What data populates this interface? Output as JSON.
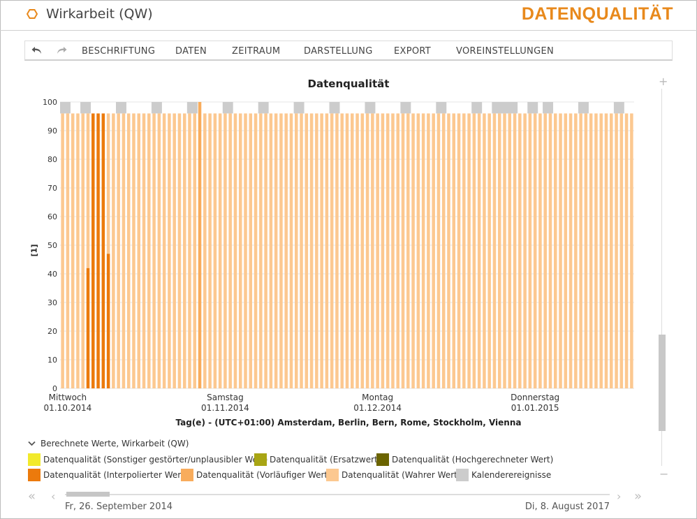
{
  "header": {
    "app_title": "Wirkarbeit (QW)",
    "module_title": "DATENQUALITÄT",
    "logo_icon": "hexagon-icon",
    "accent_color": "#e8891c"
  },
  "toolbar": {
    "undo_icon": "undo-arrow-icon",
    "redo_icon": "redo-arrow-icon",
    "menu": [
      "BESCHRIFTUNG",
      "DATEN",
      "ZEITRAUM",
      "DARSTELLUNG",
      "EXPORT",
      "VOREINSTELLUNGEN"
    ]
  },
  "chart_data": {
    "type": "bar",
    "title": "Datenqualität",
    "ylabel": "[1]",
    "xlabel": "Tag(e) - (UTC+01:00) Amsterdam, Berlin, Bern, Rome, Stockholm, Vienna",
    "ylim": [
      0,
      100
    ],
    "yticks": [
      0,
      10,
      20,
      30,
      40,
      50,
      60,
      70,
      80,
      90,
      100
    ],
    "x_start": "2014-09-30",
    "day_count": 113,
    "xticks": [
      {
        "line1": "Mittwoch",
        "line2": "01.10.2014",
        "date": "2014-10-01"
      },
      {
        "line1": "Samstag",
        "line2": "01.11.2014",
        "date": "2014-11-01"
      },
      {
        "line1": "Montag",
        "line2": "01.12.2014",
        "date": "2014-12-01"
      },
      {
        "line1": "Donnerstag",
        "line2": "01.01.2015",
        "date": "2015-01-01"
      }
    ],
    "grid": true,
    "legend_position": "bottom",
    "series": [
      {
        "name": "Datenqualität (Sonstiger gestörter/unplausibler Wert)",
        "color": "#f2ea2b",
        "points": []
      },
      {
        "name": "Datenqualität (Ersatzwert)",
        "color": "#a8a514",
        "points": []
      },
      {
        "name": "Datenqualität (Hochgerechneter Wert)",
        "color": "#6b6400",
        "points": []
      },
      {
        "name": "Datenqualität (Interpolierter Wert)",
        "color": "#ec7a0c",
        "points": [
          {
            "date": "2014-10-05",
            "value": 42
          },
          {
            "date": "2014-10-06",
            "value": 96
          },
          {
            "date": "2014-10-07",
            "value": 96
          },
          {
            "date": "2014-10-08",
            "value": 96
          },
          {
            "date": "2014-10-09",
            "value": 47
          }
        ]
      },
      {
        "name": "Datenqualität (Vorläufiger Wert)",
        "color": "#f8ac5c",
        "points": [
          {
            "date": "2014-10-27",
            "value": 100
          }
        ]
      },
      {
        "name": "Datenqualität (Wahrer Wert)",
        "color": "#fcc890",
        "default_value": 96
      },
      {
        "name": "Kalenderereignisse",
        "color": "#cccccc",
        "height": 4,
        "dates": [
          "2014-09-30",
          "2014-10-01",
          "2014-10-04",
          "2014-10-05",
          "2014-10-11",
          "2014-10-12",
          "2014-10-18",
          "2014-10-19",
          "2014-10-25",
          "2014-10-26",
          "2014-11-01",
          "2014-11-02",
          "2014-11-08",
          "2014-11-09",
          "2014-11-15",
          "2014-11-16",
          "2014-11-22",
          "2014-11-23",
          "2014-11-29",
          "2014-11-30",
          "2014-12-06",
          "2014-12-07",
          "2014-12-13",
          "2014-12-14",
          "2014-12-20",
          "2014-12-21",
          "2014-12-24",
          "2014-12-25",
          "2014-12-26",
          "2014-12-27",
          "2014-12-28",
          "2014-12-31",
          "2015-01-01",
          "2015-01-03",
          "2015-01-04",
          "2015-01-10",
          "2015-01-11",
          "2015-01-17",
          "2015-01-18"
        ]
      }
    ]
  },
  "legend": {
    "group_title": "Berechnete Werte, Wirkarbeit (QW)",
    "group_icon": "chevron-down-icon"
  },
  "navigation": {
    "range_start": "Fr, 26. September 2014",
    "range_end": "Di, 8. August 2017",
    "first_icon": "double-chevron-left-icon",
    "prev_icon": "chevron-left-icon",
    "next_icon": "chevron-right-icon",
    "last_icon": "double-chevron-right-icon"
  },
  "zoom": {
    "plus_icon": "zoom-in-icon",
    "minus_icon": "zoom-out-icon"
  }
}
